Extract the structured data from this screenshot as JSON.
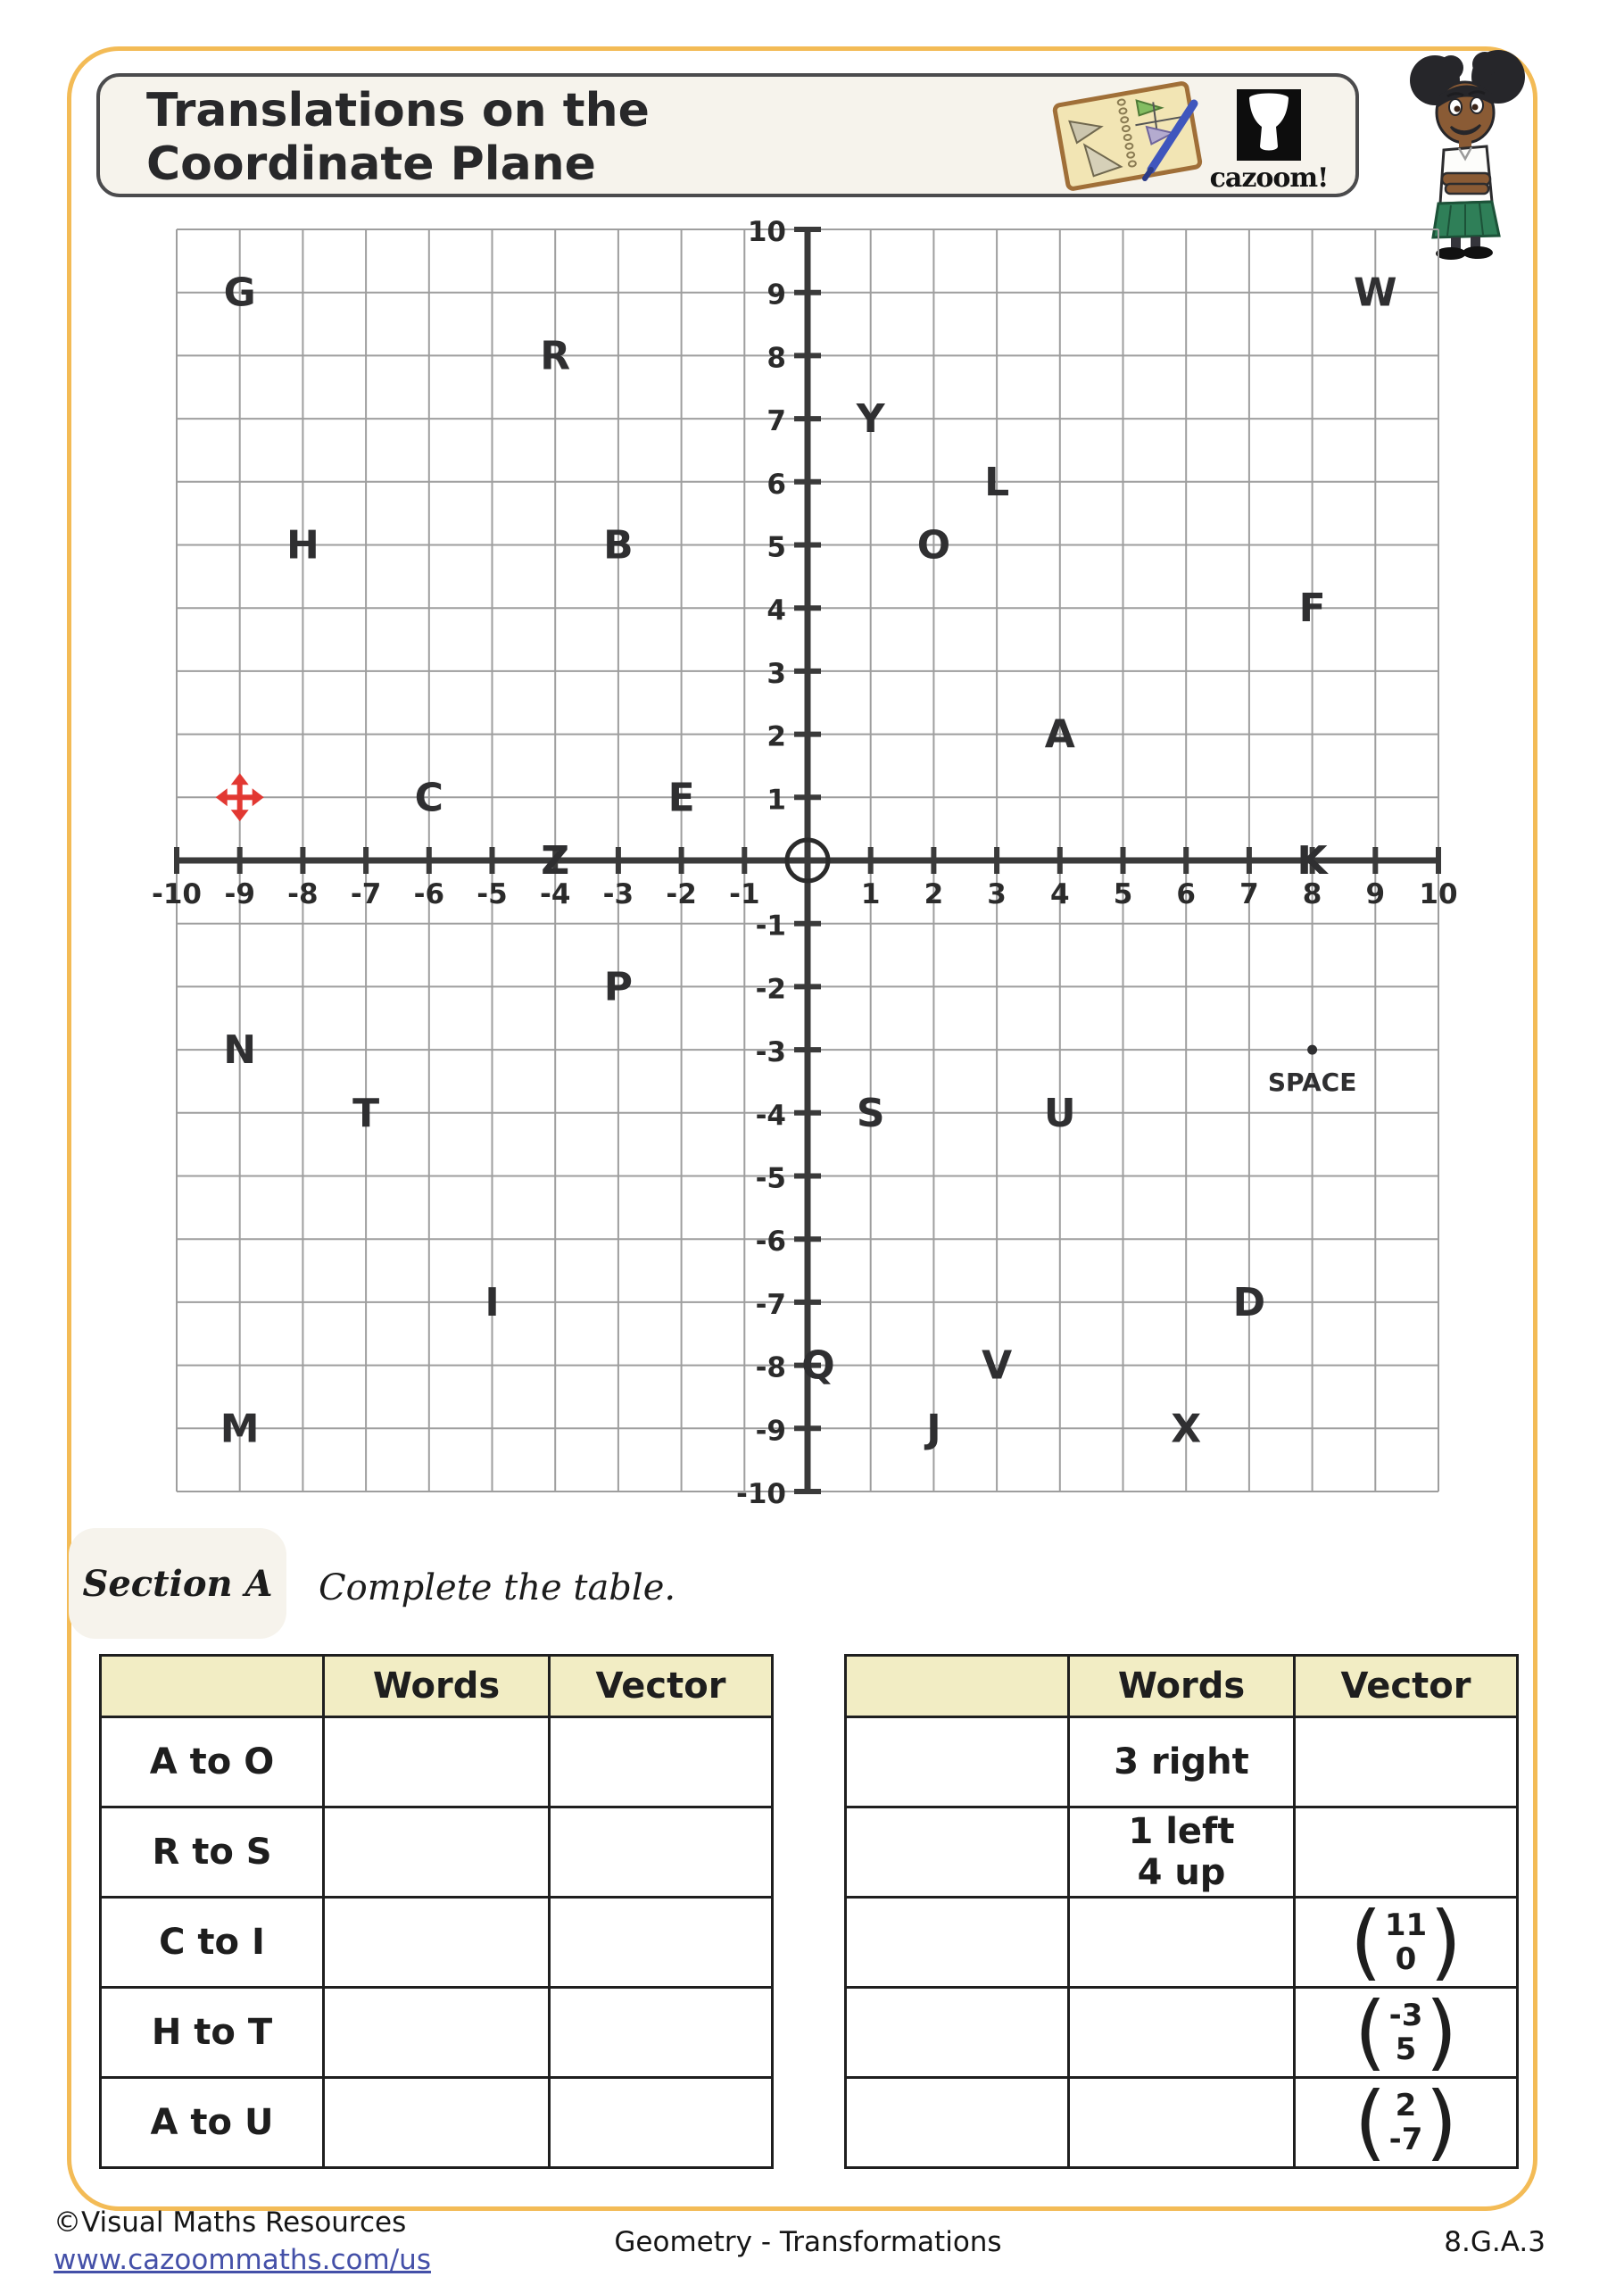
{
  "header": {
    "title_line1": "Translations on the",
    "title_line2": "Coordinate Plane",
    "logo_text": "cazoom!"
  },
  "section_a": {
    "badge": "Section A",
    "instruction": "Complete the table."
  },
  "chart_data": {
    "type": "scatter",
    "title": "",
    "xlabel": "",
    "ylabel": "",
    "xlim": [
      -10,
      10
    ],
    "ylim": [
      -10,
      10
    ],
    "tick_step": 1,
    "grid": true,
    "origin_circle": true,
    "points": [
      {
        "label": "A",
        "x": 4,
        "y": 2
      },
      {
        "label": "B",
        "x": -3,
        "y": 5
      },
      {
        "label": "C",
        "x": -6,
        "y": 1
      },
      {
        "label": "D",
        "x": 7,
        "y": -7
      },
      {
        "label": "E",
        "x": -2,
        "y": 1
      },
      {
        "label": "F",
        "x": 8,
        "y": 4
      },
      {
        "label": "G",
        "x": -9,
        "y": 9
      },
      {
        "label": "H",
        "x": -8,
        "y": 5
      },
      {
        "label": "I",
        "x": -5,
        "y": -7
      },
      {
        "label": "J",
        "x": 2,
        "y": -9
      },
      {
        "label": "K",
        "x": 8,
        "y": 0
      },
      {
        "label": "L",
        "x": 3,
        "y": 6
      },
      {
        "label": "M",
        "x": -9,
        "y": -9
      },
      {
        "label": "N",
        "x": -9,
        "y": -3
      },
      {
        "label": "O",
        "x": 2,
        "y": 5
      },
      {
        "label": "P",
        "x": -3,
        "y": -2
      },
      {
        "label": "Q",
        "x": 0,
        "y": -8,
        "dx": 12
      },
      {
        "label": "R",
        "x": -4,
        "y": 8
      },
      {
        "label": "S",
        "x": 1,
        "y": -4
      },
      {
        "label": "T",
        "x": -7,
        "y": -4
      },
      {
        "label": "U",
        "x": 4,
        "y": -4
      },
      {
        "label": "V",
        "x": 3,
        "y": -8
      },
      {
        "label": "W",
        "x": 9,
        "y": 9
      },
      {
        "label": "X",
        "x": 6,
        "y": -9
      },
      {
        "label": "Y",
        "x": 1,
        "y": 7
      },
      {
        "label": "Z",
        "x": -4,
        "y": 0
      }
    ],
    "markers": [
      {
        "name": "move-cursor",
        "x": -9,
        "y": 1
      },
      {
        "name": "labeled-dot",
        "label": "SPACE",
        "x": 8,
        "y": -3
      }
    ]
  },
  "tables": {
    "headers": [
      "",
      "Words",
      "Vector"
    ],
    "left": {
      "rows": [
        {
          "pair": "A to O",
          "words": null,
          "vector": null
        },
        {
          "pair": "R to S",
          "words": null,
          "vector": null
        },
        {
          "pair": "C to I",
          "words": null,
          "vector": null
        },
        {
          "pair": "H to T",
          "words": null,
          "vector": null
        },
        {
          "pair": "A to U",
          "words": null,
          "vector": null
        }
      ]
    },
    "right": {
      "rows": [
        {
          "pair": "",
          "words": "3 right",
          "vector": null
        },
        {
          "pair": "",
          "words": [
            "1 left",
            "4 up"
          ],
          "vector": null
        },
        {
          "pair": "",
          "words": null,
          "vector": [
            "11",
            "0"
          ]
        },
        {
          "pair": "",
          "words": null,
          "vector": [
            "-3",
            "5"
          ]
        },
        {
          "pair": "",
          "words": null,
          "vector": [
            "2",
            "-7"
          ]
        }
      ]
    }
  },
  "footer": {
    "copyright": "©Visual Maths Resources",
    "url": "www.cazoommaths.com/us",
    "center": "Geometry - Transformations",
    "standard": "8.G.A.3"
  },
  "colors": {
    "frame_orange": "#f3bb56",
    "cream": "#f6f3ec",
    "table_header_fill": "#f2edc4",
    "grid_line": "#9e9e9e",
    "axis": "#3a3a3a",
    "letter": "#2f2f31",
    "cursor_red": "#e23832",
    "link_blue": "#4450a8"
  }
}
